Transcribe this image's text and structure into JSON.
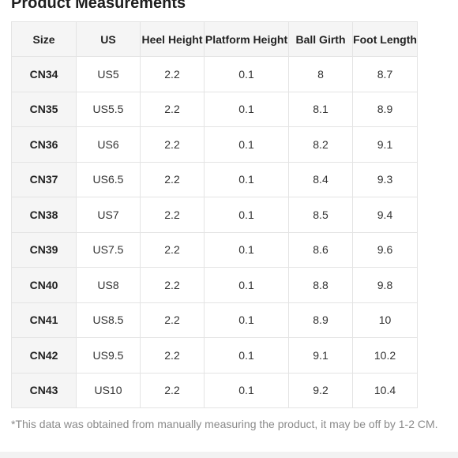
{
  "title": "Product Measurements",
  "table": {
    "headers": [
      "Size",
      "US",
      "Heel Height",
      "Platform Height",
      "Ball Girth",
      "Foot Length"
    ],
    "rows": [
      [
        "CN34",
        "US5",
        "2.2",
        "0.1",
        "8",
        "8.7"
      ],
      [
        "CN35",
        "US5.5",
        "2.2",
        "0.1",
        "8.1",
        "8.9"
      ],
      [
        "CN36",
        "US6",
        "2.2",
        "0.1",
        "8.2",
        "9.1"
      ],
      [
        "CN37",
        "US6.5",
        "2.2",
        "0.1",
        "8.4",
        "9.3"
      ],
      [
        "CN38",
        "US7",
        "2.2",
        "0.1",
        "8.5",
        "9.4"
      ],
      [
        "CN39",
        "US7.5",
        "2.2",
        "0.1",
        "8.6",
        "9.6"
      ],
      [
        "CN40",
        "US8",
        "2.2",
        "0.1",
        "8.8",
        "9.8"
      ],
      [
        "CN41",
        "US8.5",
        "2.2",
        "0.1",
        "8.9",
        "10"
      ],
      [
        "CN42",
        "US9.5",
        "2.2",
        "0.1",
        "9.1",
        "10.2"
      ],
      [
        "CN43",
        "US10",
        "2.2",
        "0.1",
        "9.2",
        "10.4"
      ]
    ]
  },
  "footnote": "*This data was obtained from manually measuring the product, it may be off by 1-2 CM."
}
